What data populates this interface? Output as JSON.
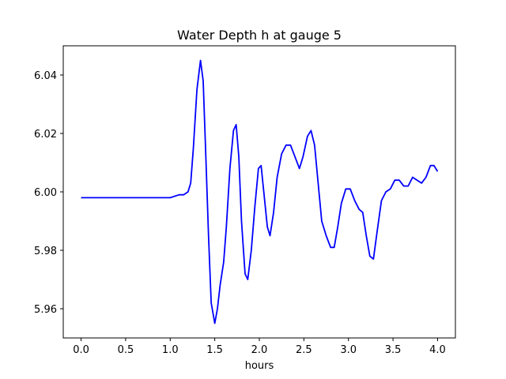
{
  "chart_data": {
    "type": "line",
    "title": "Water Depth h at gauge 5",
    "xlabel": "hours",
    "ylabel": "",
    "xlim": [
      -0.2,
      4.2
    ],
    "ylim": [
      5.95,
      6.05
    ],
    "xticks": [
      0.0,
      0.5,
      1.0,
      1.5,
      2.0,
      2.5,
      3.0,
      3.5,
      4.0
    ],
    "xtick_labels": [
      "0.0",
      "0.5",
      "1.0",
      "1.5",
      "2.0",
      "2.5",
      "3.0",
      "3.5",
      "4.0"
    ],
    "yticks": [
      5.96,
      5.98,
      6.0,
      6.02,
      6.04
    ],
    "ytick_labels": [
      "5.96",
      "5.98",
      "6.00",
      "6.02",
      "6.04"
    ],
    "grid": false,
    "series": [
      {
        "color": "#0000ff",
        "points": [
          [
            0.0,
            5.998
          ],
          [
            0.2,
            5.998
          ],
          [
            0.5,
            5.998
          ],
          [
            0.8,
            5.998
          ],
          [
            1.0,
            5.998
          ],
          [
            1.1,
            5.999
          ],
          [
            1.15,
            5.999
          ],
          [
            1.2,
            6.0
          ],
          [
            1.23,
            6.003
          ],
          [
            1.26,
            6.015
          ],
          [
            1.3,
            6.035
          ],
          [
            1.34,
            6.045
          ],
          [
            1.37,
            6.038
          ],
          [
            1.4,
            6.012
          ],
          [
            1.43,
            5.985
          ],
          [
            1.46,
            5.962
          ],
          [
            1.5,
            5.955
          ],
          [
            1.53,
            5.96
          ],
          [
            1.56,
            5.968
          ],
          [
            1.6,
            5.976
          ],
          [
            1.63,
            5.988
          ],
          [
            1.67,
            6.008
          ],
          [
            1.71,
            6.021
          ],
          [
            1.74,
            6.023
          ],
          [
            1.77,
            6.012
          ],
          [
            1.8,
            5.99
          ],
          [
            1.84,
            5.972
          ],
          [
            1.87,
            5.97
          ],
          [
            1.91,
            5.98
          ],
          [
            1.95,
            5.995
          ],
          [
            1.99,
            6.008
          ],
          [
            2.02,
            6.009
          ],
          [
            2.05,
            6.0
          ],
          [
            2.09,
            5.988
          ],
          [
            2.12,
            5.985
          ],
          [
            2.16,
            5.993
          ],
          [
            2.2,
            6.005
          ],
          [
            2.25,
            6.013
          ],
          [
            2.3,
            6.016
          ],
          [
            2.35,
            6.016
          ],
          [
            2.4,
            6.012
          ],
          [
            2.45,
            6.008
          ],
          [
            2.49,
            6.012
          ],
          [
            2.54,
            6.019
          ],
          [
            2.58,
            6.021
          ],
          [
            2.62,
            6.016
          ],
          [
            2.66,
            6.003
          ],
          [
            2.7,
            5.99
          ],
          [
            2.75,
            5.985
          ],
          [
            2.8,
            5.981
          ],
          [
            2.84,
            5.981
          ],
          [
            2.88,
            5.988
          ],
          [
            2.92,
            5.996
          ],
          [
            2.97,
            6.001
          ],
          [
            3.02,
            6.001
          ],
          [
            3.07,
            5.997
          ],
          [
            3.12,
            5.994
          ],
          [
            3.16,
            5.993
          ],
          [
            3.2,
            5.985
          ],
          [
            3.24,
            5.978
          ],
          [
            3.28,
            5.977
          ],
          [
            3.32,
            5.986
          ],
          [
            3.37,
            5.997
          ],
          [
            3.42,
            6.0
          ],
          [
            3.47,
            6.001
          ],
          [
            3.52,
            6.004
          ],
          [
            3.57,
            6.004
          ],
          [
            3.62,
            6.002
          ],
          [
            3.67,
            6.002
          ],
          [
            3.72,
            6.005
          ],
          [
            3.77,
            6.004
          ],
          [
            3.82,
            6.003
          ],
          [
            3.87,
            6.005
          ],
          [
            3.92,
            6.009
          ],
          [
            3.96,
            6.009
          ],
          [
            4.0,
            6.007
          ]
        ]
      }
    ]
  }
}
